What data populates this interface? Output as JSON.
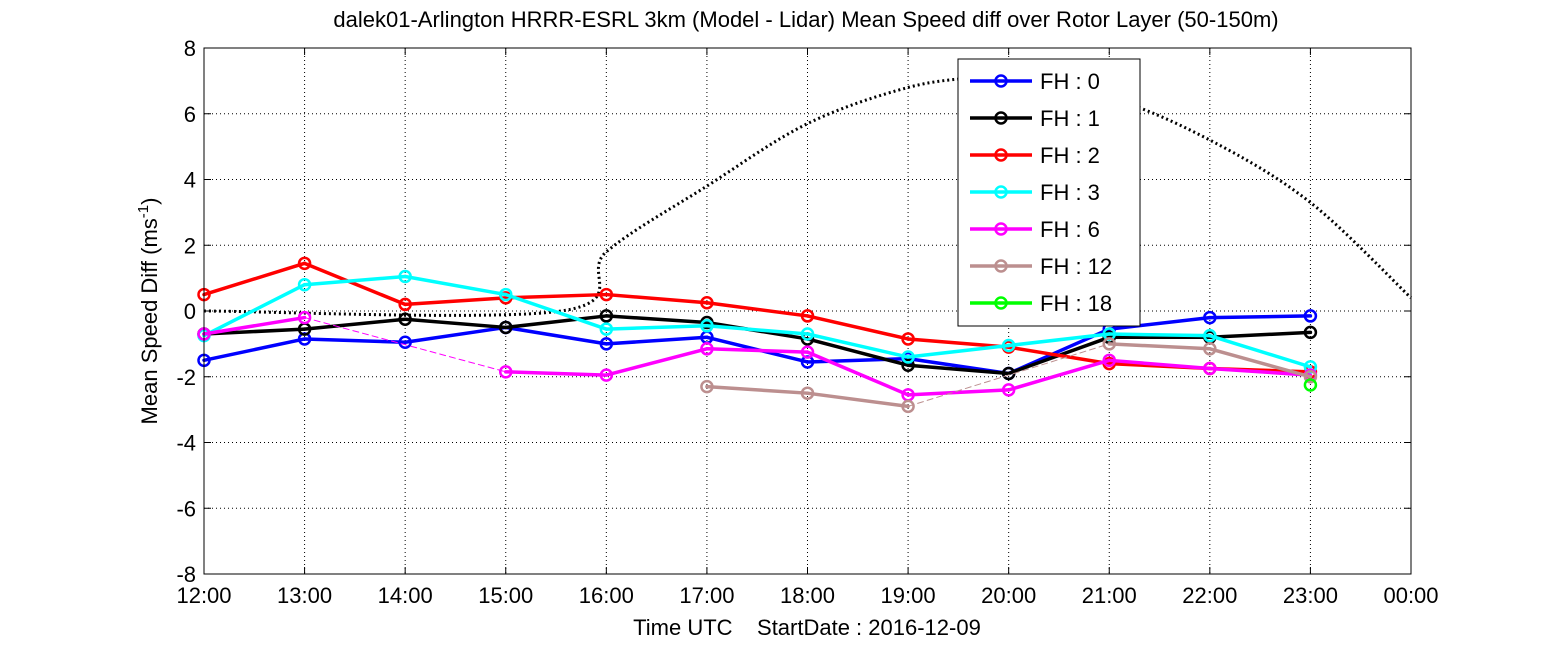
{
  "chart_data": {
    "type": "line",
    "title": "dalek01-Arlington HRRR-ESRL 3km (Model - Lidar) Mean Speed diff over Rotor Layer (50-150m)",
    "xlabel": "Time UTC    StartDate : 2016-12-09",
    "ylabel": "Mean Speed Diff (ms",
    "ylabel_sup": "-1",
    "ylabel_end": ")",
    "x_tick_labels": [
      "12:00",
      "13:00",
      "14:00",
      "15:00",
      "16:00",
      "17:00",
      "18:00",
      "19:00",
      "20:00",
      "21:00",
      "22:00",
      "23:00",
      "00:00"
    ],
    "xlim": [
      12,
      24
    ],
    "ylim": [
      -8,
      8
    ],
    "y_ticks": [
      -8,
      -6,
      -4,
      -2,
      0,
      2,
      4,
      6,
      8
    ],
    "grid": true,
    "legend_position": "top-right",
    "series": [
      {
        "name": "FH : 0",
        "color": "#0000ff",
        "x": [
          12,
          13,
          14,
          15,
          16,
          17,
          18,
          19,
          20,
          21,
          22,
          23
        ],
        "values": [
          -1.5,
          -0.85,
          -0.95,
          -0.5,
          -1.0,
          -0.8,
          -1.55,
          -1.45,
          -1.9,
          -0.55,
          -0.2,
          -0.15
        ]
      },
      {
        "name": "FH : 1",
        "color": "#000000",
        "x": [
          12,
          13,
          14,
          15,
          16,
          17,
          18,
          19,
          20,
          21,
          22,
          23
        ],
        "values": [
          -0.7,
          -0.55,
          -0.25,
          -0.5,
          -0.15,
          -0.35,
          -0.85,
          -1.65,
          -1.9,
          -0.8,
          -0.8,
          -0.65
        ]
      },
      {
        "name": "FH : 2",
        "color": "#ff0000",
        "x": [
          12,
          13,
          14,
          15,
          16,
          17,
          18,
          19,
          20,
          21,
          22,
          23
        ],
        "values": [
          0.5,
          1.45,
          0.2,
          0.4,
          0.5,
          0.25,
          -0.15,
          -0.85,
          -1.1,
          -1.6,
          -1.75,
          -1.85
        ]
      },
      {
        "name": "FH : 3",
        "color": "#00ffff",
        "x": [
          12,
          13,
          14,
          15,
          16,
          17,
          18,
          19,
          20,
          21,
          22,
          23
        ],
        "values": [
          -0.75,
          0.8,
          1.05,
          0.5,
          -0.55,
          -0.45,
          -0.7,
          -1.4,
          -1.05,
          -0.7,
          -0.75,
          -1.7
        ]
      },
      {
        "name": "FH : 6",
        "color": "#ff00ff",
        "x": [
          12,
          13,
          15,
          16,
          17,
          18,
          19,
          20,
          21,
          22,
          23
        ],
        "values": [
          -0.7,
          -0.2,
          -1.85,
          -1.95,
          -1.15,
          -1.25,
          -2.55,
          -2.4,
          -1.5,
          -1.75,
          -1.95
        ],
        "thin_from": 13,
        "thin_to": 15
      },
      {
        "name": "FH : 12",
        "color": "#bc8f8f",
        "x": [
          17,
          18,
          19,
          21,
          22,
          23
        ],
        "values": [
          -2.3,
          -2.5,
          -2.9,
          -1.0,
          -1.15,
          -2.0
        ],
        "thin_from": 19,
        "thin_to": 21
      },
      {
        "name": "FH : 18",
        "color": "#00ff00",
        "x": [
          23
        ],
        "values": [
          -2.25
        ]
      }
    ],
    "reference_curve": {
      "style": "dotted",
      "color": "#000000",
      "x": [
        12,
        15.55,
        16,
        17,
        18,
        19,
        19.7,
        20,
        21,
        22,
        23,
        24
      ],
      "values": [
        0,
        0,
        1.8,
        3.8,
        5.7,
        6.8,
        7.1,
        7.05,
        6.5,
        5.2,
        3.3,
        0.4
      ]
    }
  }
}
